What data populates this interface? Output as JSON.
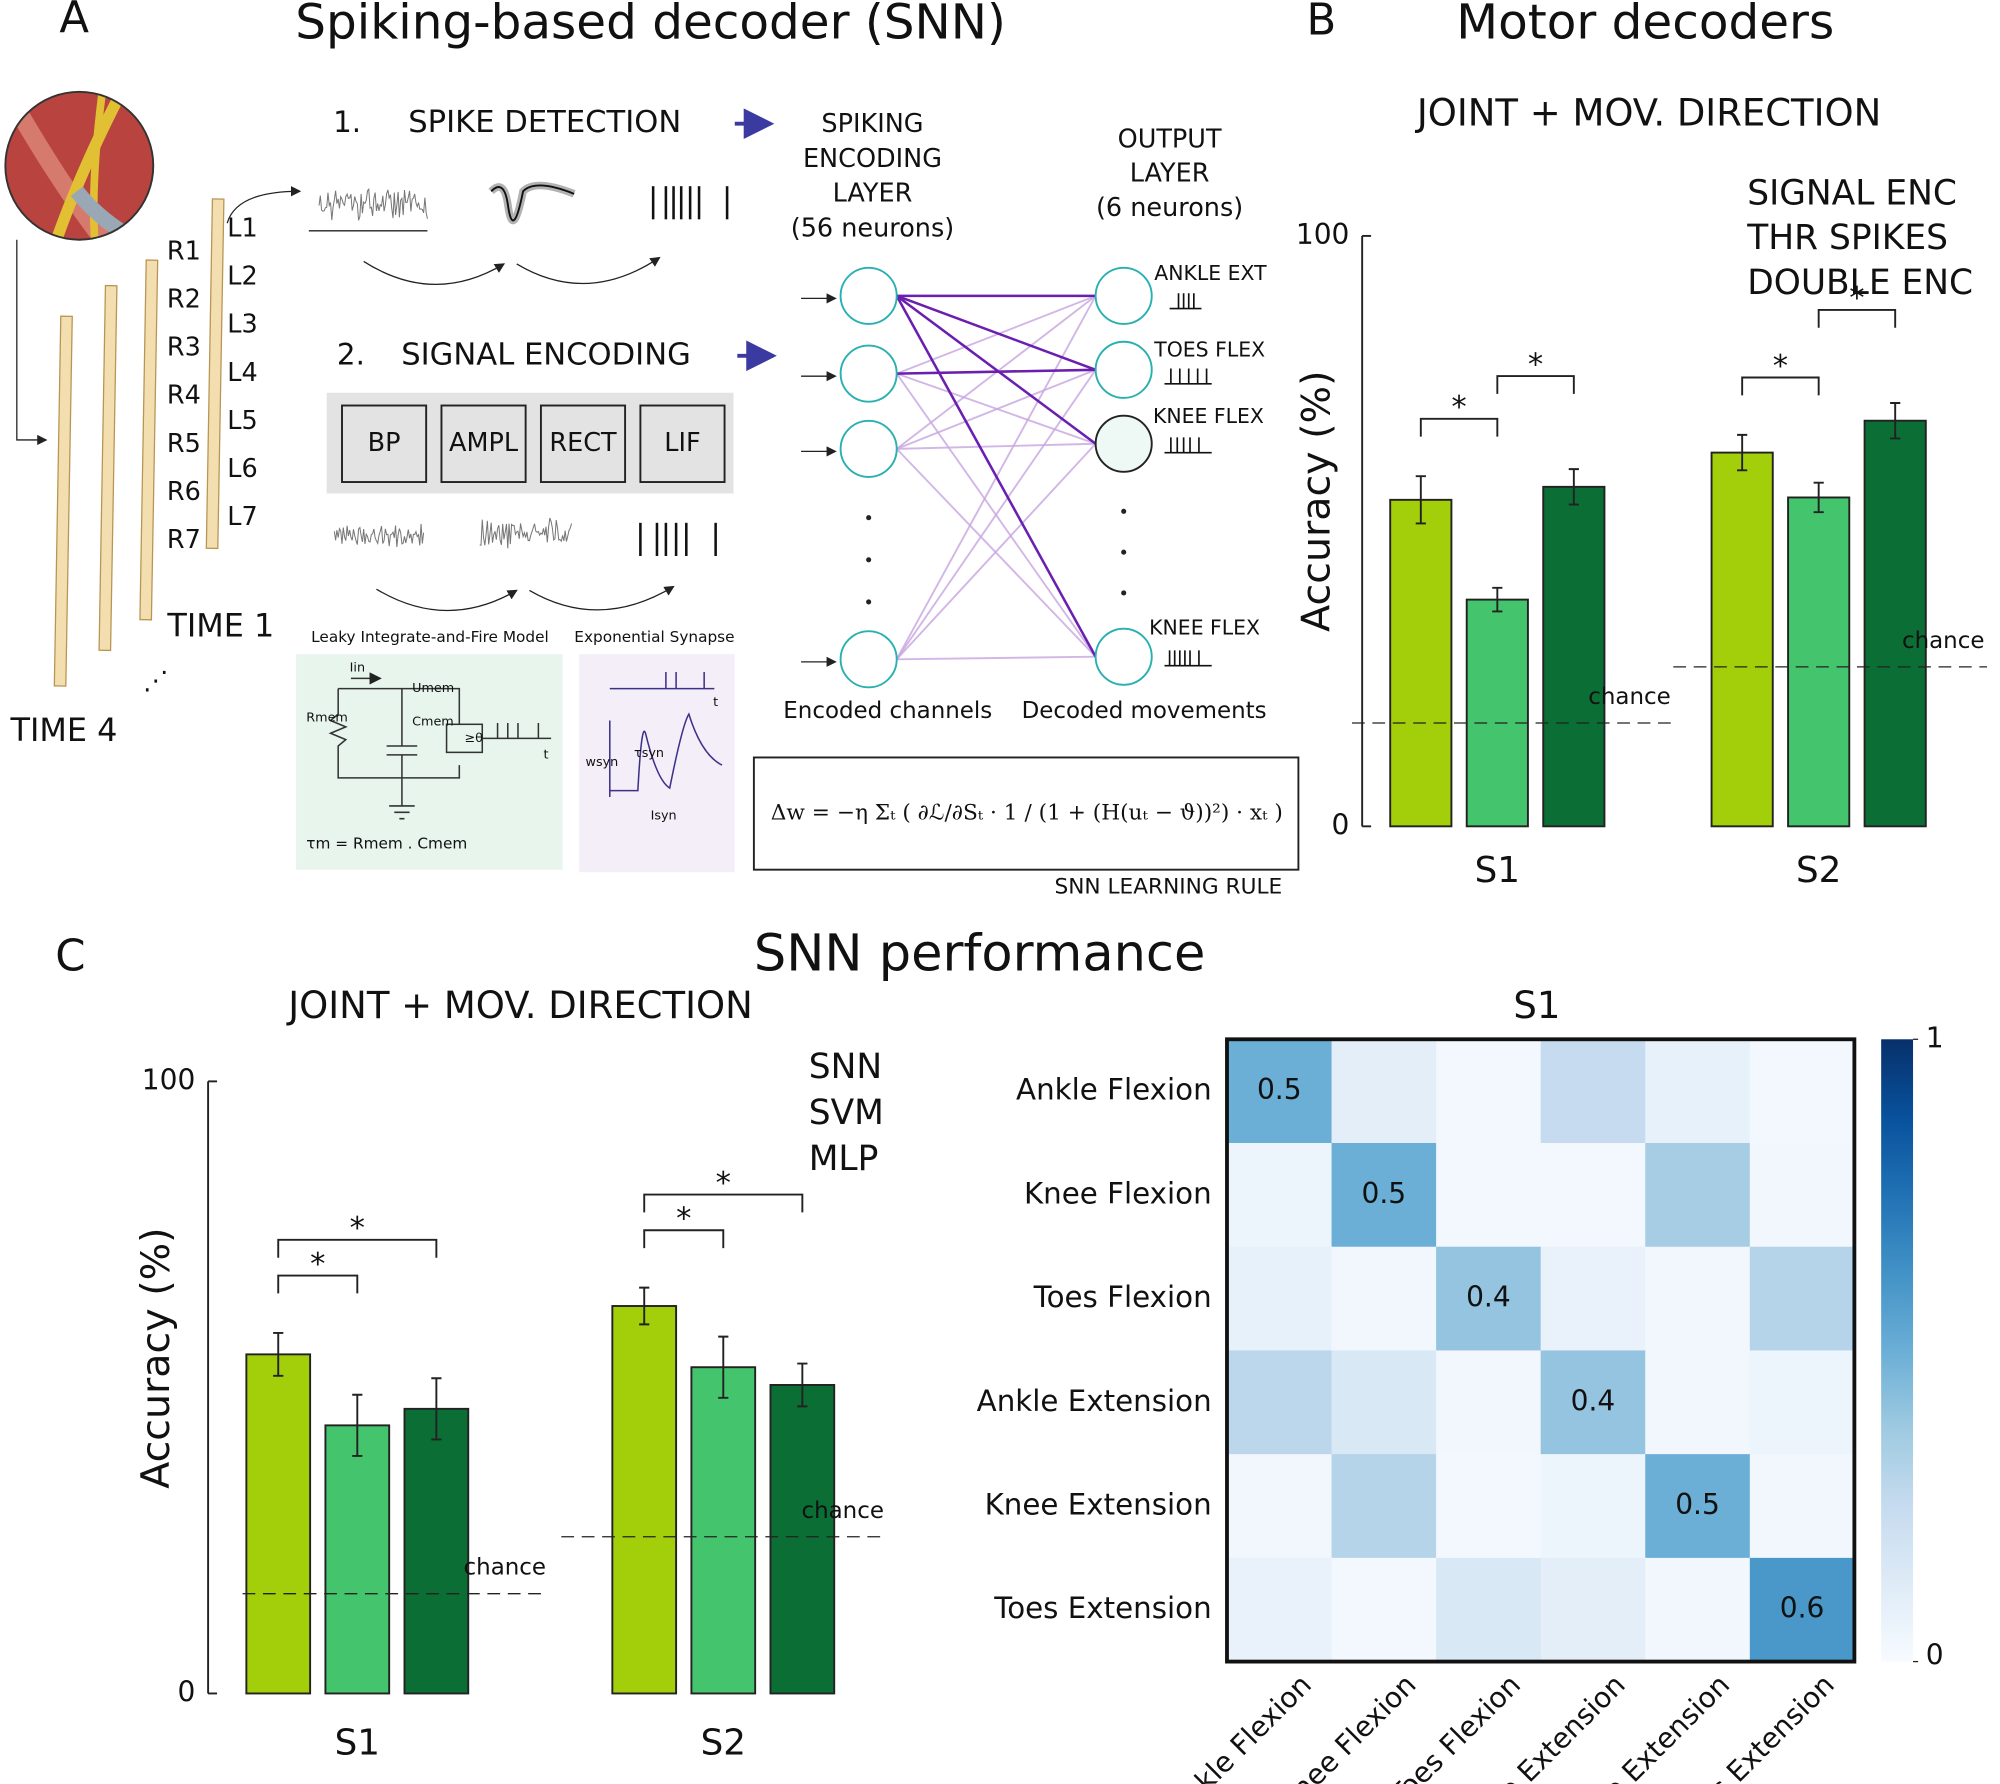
{
  "panel_a": {
    "label": "A",
    "title": "Spiking-based decoder (SNN)",
    "electrodes_right": [
      "R1",
      "R2",
      "R3",
      "R4",
      "R5",
      "R6",
      "R7"
    ],
    "electrodes_left": [
      "L1",
      "L2",
      "L3",
      "L4",
      "L5",
      "L6",
      "L7"
    ],
    "time_1": "TIME 1",
    "time_4": "TIME 4",
    "step_1_num": "1.",
    "step_1": "SPIKE DETECTION",
    "step_2_num": "2.",
    "step_2": "SIGNAL ENCODING",
    "blocks": [
      "BP",
      "AMPL",
      "RECT",
      "LIF"
    ],
    "lif_title": "Leaky Integrate-and-Fire Model",
    "lif_labels": [
      "Iin",
      "Umem",
      "Rmem",
      "Cmem",
      "≥θ",
      "t",
      "τm = Rmem . Cmem"
    ],
    "synapse_title": "Exponential Synapse",
    "synapse_labels": [
      "t",
      "wsyn",
      "τsyn",
      "Isyn"
    ],
    "encoding_layer": [
      "SPIKING",
      "ENCODING",
      "LAYER",
      "(56 neurons)"
    ],
    "output_layer": [
      "OUTPUT",
      "LAYER",
      "(6 neurons)"
    ],
    "outputs": [
      "ANKLE EXT",
      "TOES FLEX",
      "KNEE FLEX",
      "KNEE FLEX"
    ],
    "encoded": "Encoded channels",
    "decoded": "Decoded movements",
    "learning_rule": "Δw = −η Σₜ ( ∂ℒ/∂Sₜ · 1 / (1 + (H(uₜ − ϑ))²) · xₜ )",
    "rule_label": "SNN LEARNING RULE"
  },
  "chart_data": [
    {
      "type": "bar",
      "panel_label": "B",
      "title": "Motor decoders",
      "subtitle": "JOINT + MOV. DIRECTION",
      "ylabel": "Accuracy (%)",
      "categories": [
        "S1",
        "S2"
      ],
      "ylim": [
        0,
        100
      ],
      "yticks": [
        0,
        100
      ],
      "series": [
        {
          "name": "SIGNAL ENC",
          "color": "#a3cf0a",
          "values": [
            55.3,
            63.3
          ],
          "errors": [
            4,
            3
          ]
        },
        {
          "name": "THR SPIKES",
          "color": "#45c46e",
          "values": [
            38.4,
            55.7
          ],
          "errors": [
            2,
            2.5
          ]
        },
        {
          "name": "DOUBLE ENC",
          "color": "#0b6e35",
          "values": [
            57.5,
            68.7
          ],
          "errors": [
            3,
            3
          ]
        }
      ],
      "chance": {
        "label": "chance",
        "values": [
          17.5,
          27
        ]
      },
      "significance": [
        {
          "category": 0,
          "from": 0,
          "to": 1,
          "text": "*"
        },
        {
          "category": 0,
          "from": 1,
          "to": 2,
          "text": "*"
        },
        {
          "category": 1,
          "from": 0,
          "to": 1,
          "text": "*"
        },
        {
          "category": 1,
          "from": 1,
          "to": 2,
          "text": "*"
        }
      ]
    },
    {
      "type": "bar",
      "panel_label": "C",
      "title": "SNN performance",
      "subtitle": "JOINT + MOV. DIRECTION",
      "ylabel": "Accuracy (%)",
      "categories": [
        "S1",
        "S2"
      ],
      "ylim": [
        0,
        100
      ],
      "yticks": [
        0,
        100
      ],
      "series": [
        {
          "name": "SNN",
          "color": "#a3cf0a",
          "values": [
            55.4,
            63.3
          ],
          "errors": [
            3.5,
            3
          ]
        },
        {
          "name": "SVM",
          "color": "#45c46e",
          "values": [
            43.8,
            53.3
          ],
          "errors": [
            5,
            5
          ]
        },
        {
          "name": "MLP",
          "color": "#0b6e35",
          "values": [
            46.5,
            50.4
          ],
          "errors": [
            5,
            3.5
          ]
        }
      ],
      "chance": {
        "label": "chance",
        "values": [
          16.3,
          25.6
        ]
      },
      "significance": [
        {
          "category": 0,
          "from": 0,
          "to": 1,
          "text": "*"
        },
        {
          "category": 0,
          "from": 0,
          "to": 2,
          "text": "*"
        },
        {
          "category": 1,
          "from": 0,
          "to": 1,
          "text": "*"
        },
        {
          "category": 1,
          "from": 0,
          "to": 2,
          "text": "*"
        }
      ]
    },
    {
      "type": "heatmap",
      "title": "S1",
      "rows": [
        "Ankle Flexion",
        "Knee Flexion",
        "Toes Flexion",
        "Ankle Extension",
        "Knee Extension",
        "Toes Extension"
      ],
      "columns": [
        "Ankle Flexion",
        "Knee Flexion",
        "Toes Flexion",
        "Ankle Extension",
        "Knee Extension",
        "Toes Extension"
      ],
      "values": [
        [
          0.5,
          0.1,
          0.02,
          0.25,
          0.08,
          0.02
        ],
        [
          0.05,
          0.5,
          0.02,
          0.02,
          0.35,
          0.03
        ],
        [
          0.08,
          0.03,
          0.4,
          0.07,
          0.03,
          0.3
        ],
        [
          0.28,
          0.15,
          0.03,
          0.4,
          0.03,
          0.05
        ],
        [
          0.03,
          0.3,
          0.02,
          0.05,
          0.5,
          0.03
        ],
        [
          0.07,
          0.02,
          0.15,
          0.1,
          0.03,
          0.6
        ]
      ],
      "colormap": "Blues",
      "zlim": [
        0,
        1
      ],
      "zticks": [
        0,
        1
      ]
    }
  ]
}
